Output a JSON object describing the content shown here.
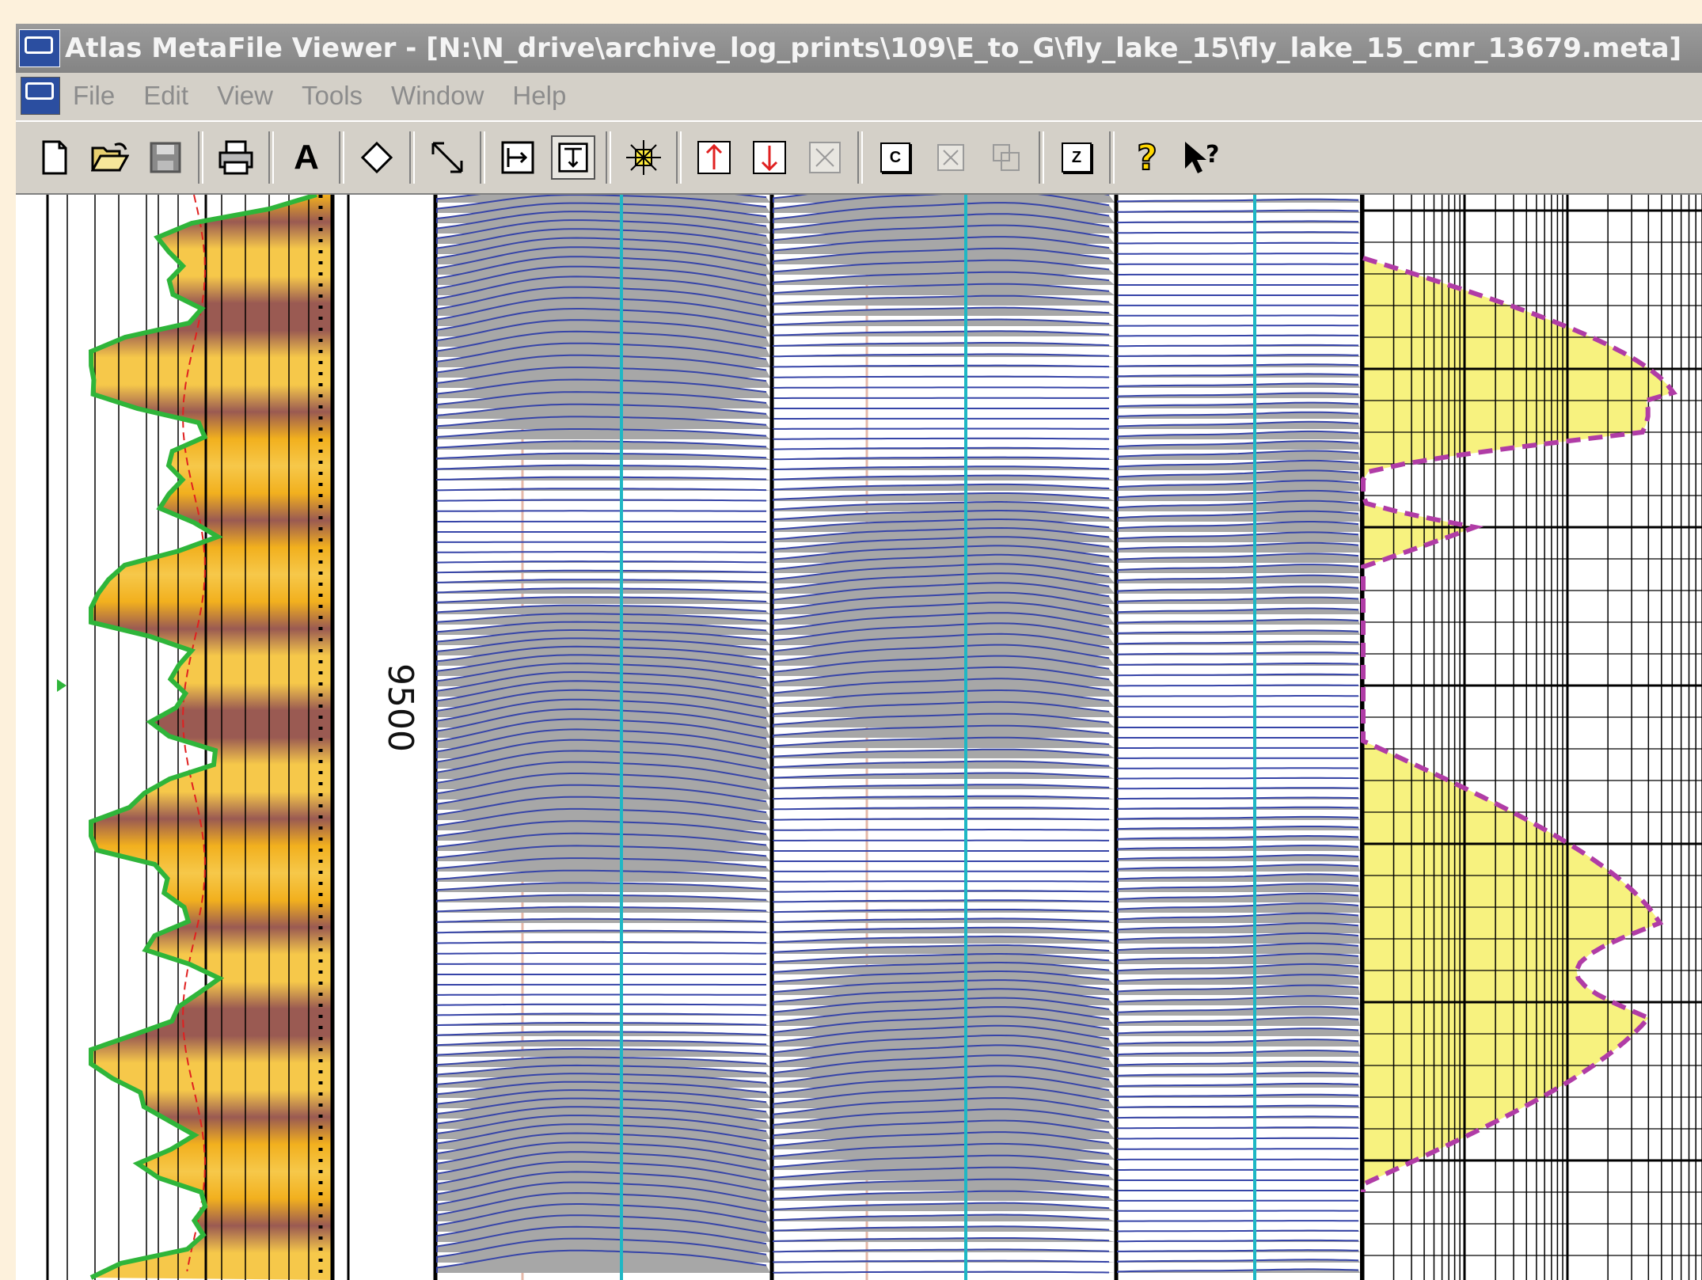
{
  "window": {
    "title": "Atlas MetaFile Viewer - [N:\\N_drive\\archive_log_prints\\109\\E_to_G\\fly_lake_15\\fly_lake_15_cmr_13679.meta]"
  },
  "menu": {
    "items": [
      "File",
      "Edit",
      "View",
      "Tools",
      "Window",
      "Help"
    ]
  },
  "toolbar": {
    "buttons": [
      {
        "name": "new-icon"
      },
      {
        "name": "open-icon"
      },
      {
        "name": "save-icon"
      },
      {
        "name": "print-icon"
      },
      {
        "name": "font-icon",
        "glyph": "A"
      },
      {
        "name": "diamond-icon"
      },
      {
        "name": "diagonal-arrow-icon"
      },
      {
        "name": "fit-width-icon"
      },
      {
        "name": "fit-height-icon"
      },
      {
        "name": "zoom-center-icon"
      },
      {
        "name": "arrow-up-icon"
      },
      {
        "name": "arrow-down-icon"
      },
      {
        "name": "delete-icon"
      },
      {
        "name": "c-box-icon",
        "glyph": "C"
      },
      {
        "name": "x-box-icon"
      },
      {
        "name": "copy-box-icon"
      },
      {
        "name": "z-box-icon",
        "glyph": "Z"
      },
      {
        "name": "help-icon"
      },
      {
        "name": "context-help-icon"
      }
    ]
  },
  "log": {
    "depth_label": "9500"
  },
  "colors": {
    "curve_green": "#2fb53a",
    "trace_blue": "#3644a8",
    "trace_fill": "#a7a7a7",
    "cyan_line": "#1fb7c4",
    "pink_line": "#e5b8a8",
    "dashed_magenta": "#b03ca6",
    "fill_yellow": "#f7f27f",
    "density_gold": "#f2b01e",
    "density_brown": "#9a5a52"
  }
}
